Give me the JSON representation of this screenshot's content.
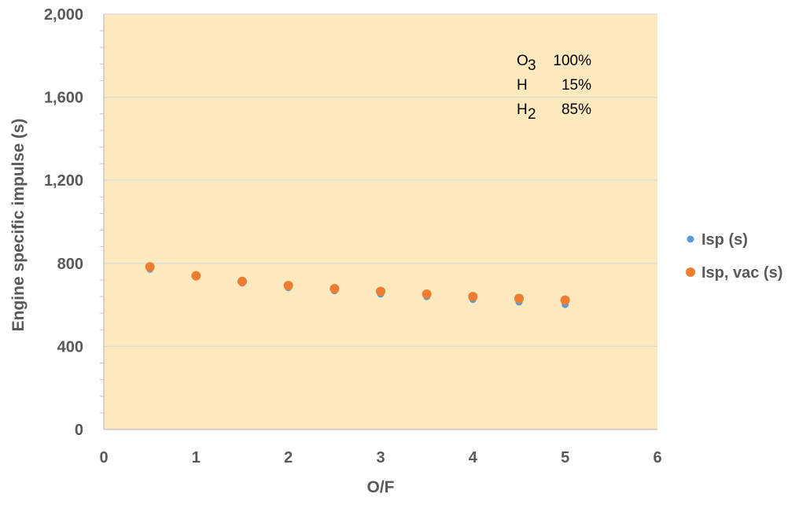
{
  "chart_data": {
    "type": "scatter",
    "xlabel": "O/F",
    "ylabel": "Engine specific impulse (s)",
    "xlim": [
      0,
      6
    ],
    "ylim": [
      0,
      2000
    ],
    "x_ticks": [
      "0",
      "1",
      "2",
      "3",
      "4",
      "5",
      "6"
    ],
    "y_ticks": [
      "0",
      "400",
      "800",
      "1,200",
      "1,600",
      "2,000"
    ],
    "grid": true,
    "plot_background": "#FCE9BE",
    "legend_position": "right",
    "series": [
      {
        "name": "Isp (s)",
        "color": "#5B9BD5",
        "x": [
          0.5,
          1.0,
          1.5,
          2.0,
          2.5,
          3.0,
          3.5,
          4.0,
          4.5,
          5.0
        ],
        "y": [
          772,
          735,
          705,
          683,
          668,
          652,
          640,
          626,
          614,
          602
        ]
      },
      {
        "name": "Isp, vac (s)",
        "color": "#ED7D31",
        "x": [
          0.5,
          1.0,
          1.5,
          2.0,
          2.5,
          3.0,
          3.5,
          4.0,
          4.5,
          5.0
        ],
        "y": [
          783,
          740,
          713,
          693,
          678,
          665,
          652,
          640,
          631,
          623
        ]
      }
    ],
    "annotation": [
      {
        "species": "O",
        "sub": "3",
        "value": "100%"
      },
      {
        "species": "H",
        "sub": "",
        "value": "15%"
      },
      {
        "species": "H",
        "sub": "2",
        "value": "85%"
      }
    ]
  }
}
